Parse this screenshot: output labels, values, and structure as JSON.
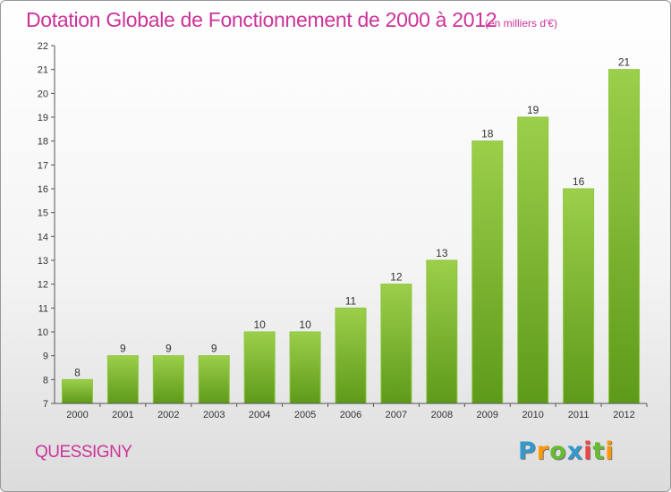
{
  "page": {
    "title": "Dotation Globale de Fonctionnement de 2000 à 2012",
    "unit_note": "(en milliers d'€)",
    "commune": "QUESSIGNY",
    "logo": {
      "text": "Proxiti",
      "letters": [
        {
          "ch": "P",
          "color": "#3399cc"
        },
        {
          "ch": "r",
          "color": "#ff9900"
        },
        {
          "ch": "o",
          "color": "#66bb33"
        },
        {
          "ch": "x",
          "color": "#3399cc"
        },
        {
          "ch": "i",
          "color": "#ee4444"
        },
        {
          "ch": "t",
          "color": "#66bb33"
        },
        {
          "ch": "i",
          "color": "#ff9900"
        }
      ]
    }
  },
  "colors": {
    "accent": "#cc3399",
    "bar_top": "#9ccf4a",
    "bar_bottom": "#5e9a1a",
    "axis": "#555555"
  },
  "chart_data": {
    "type": "bar",
    "title": "Dotation Globale de Fonctionnement de 2000 à 2012",
    "subtitle": "(en milliers d'€)",
    "xlabel": "",
    "ylabel": "",
    "categories": [
      "2000",
      "2001",
      "2002",
      "2003",
      "2004",
      "2005",
      "2006",
      "2007",
      "2008",
      "2009",
      "2010",
      "2011",
      "2012"
    ],
    "values": [
      8,
      9,
      9,
      9,
      10,
      10,
      11,
      12,
      13,
      18,
      19,
      16,
      21
    ],
    "ylim": [
      7,
      22
    ],
    "yticks": [
      7,
      8,
      9,
      10,
      11,
      12,
      13,
      14,
      15,
      16,
      17,
      18,
      19,
      20,
      21,
      22
    ],
    "grid": false,
    "data_labels": true
  }
}
